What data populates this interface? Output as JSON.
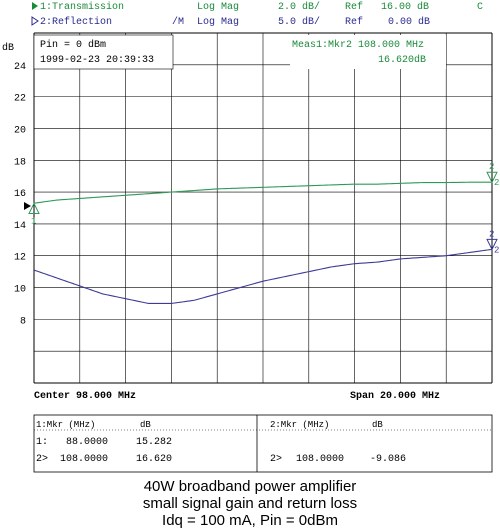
{
  "header": {
    "ch1_label": "1:Transmission",
    "ch1_format": "Log Mag",
    "ch1_scale": "2.0 dB/",
    "ch1_ref_label": "Ref",
    "ch1_ref": "16.00 dB",
    "ch1_flag": "C",
    "ch2_label": "2:Reflection",
    "ch2_mode": "/M",
    "ch2_format": "Log Mag",
    "ch2_scale": "5.0 dB/",
    "ch2_ref_label": "Ref",
    "ch2_ref": "0.00 dB"
  },
  "annotations": {
    "pin": "Pin = 0 dBm",
    "timestamp": "1999-02-23 20:39:33",
    "meas": "Meas1:Mkr2  108.000 MHz",
    "meas_value": "16.620dB",
    "center": "Center 98.000 MHz",
    "span": "Span 20.000 MHz"
  },
  "marker_table": {
    "ch1_header": "1:Mkr (MHz)",
    "ch1_unit": "dB",
    "ch1_rows": [
      {
        "id": "1:",
        "freq": "88.0000",
        "value": "15.282"
      },
      {
        "id": "2>",
        "freq": "108.0000",
        "value": "16.620"
      }
    ],
    "ch2_header": "2:Mkr (MHz)",
    "ch2_unit": "dB",
    "ch2_rows": [
      {
        "id": "2>",
        "freq": "108.0000",
        "value": "-9.086"
      }
    ]
  },
  "caption": {
    "line1": "40W broadband power amplifier",
    "line2": "small signal gain and return loss",
    "line3": "Idq = 100 mA,  Pin = 0dBm"
  },
  "colors": {
    "transmission": "#2e9a57",
    "reflection": "#3c3c98",
    "header_green": "#1a8a3a",
    "header_blue": "#2a2a90",
    "grid": "#000000"
  },
  "chart_data": {
    "type": "line",
    "x": [
      88,
      89,
      90,
      91,
      92,
      93,
      94,
      95,
      96,
      97,
      98,
      99,
      100,
      101,
      102,
      103,
      104,
      105,
      106,
      107,
      108
    ],
    "xlim": [
      88,
      108
    ],
    "ylim": [
      4,
      26
    ],
    "y_tick_labels": [
      "24",
      "22",
      "20",
      "18",
      "16",
      "14",
      "12",
      "10",
      "8"
    ],
    "y_unit": "dB",
    "grid": true,
    "series": [
      {
        "name": "1:Transmission",
        "values": [
          15.3,
          15.5,
          15.6,
          15.7,
          15.8,
          15.9,
          16.0,
          16.1,
          16.2,
          16.25,
          16.3,
          16.35,
          16.4,
          16.45,
          16.5,
          16.5,
          16.55,
          16.6,
          16.6,
          16.62,
          16.62
        ]
      },
      {
        "name": "2:Reflection",
        "values": [
          11.1,
          10.6,
          10.1,
          9.6,
          9.3,
          9.0,
          9.0,
          9.2,
          9.6,
          10.0,
          10.4,
          10.7,
          11.0,
          11.3,
          11.5,
          11.6,
          11.8,
          11.9,
          12.0,
          12.2,
          12.4
        ]
      }
    ],
    "markers": [
      {
        "series": 0,
        "label": "1",
        "x": 88,
        "y": 15.282
      },
      {
        "series": 0,
        "label": "2",
        "x": 108,
        "y": 16.62
      },
      {
        "series": 1,
        "label": "2",
        "x": 108,
        "y": 12.4
      }
    ]
  }
}
